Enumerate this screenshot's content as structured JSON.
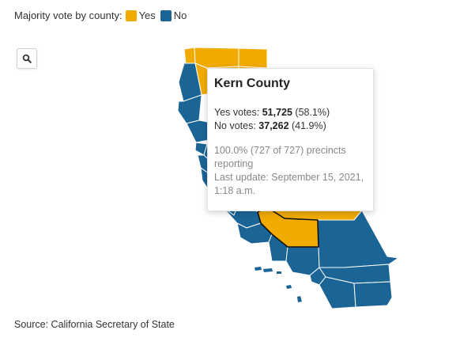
{
  "legend": {
    "title": "Majority vote by county:",
    "items": [
      {
        "label": "Yes",
        "color": "#f0aa00"
      },
      {
        "label": "No",
        "color": "#1a6496"
      }
    ]
  },
  "zoom_button": {
    "icon": "search-icon"
  },
  "colors": {
    "yes": "#f0aa00",
    "no": "#1a6496",
    "selected_outline": "#111111"
  },
  "tooltip": {
    "county": "Kern County",
    "yes_label": "Yes votes:",
    "yes_votes": "51,725",
    "yes_pct": "(58.1%)",
    "no_label": "No votes:",
    "no_votes": "37,262",
    "no_pct": "(41.9%)",
    "precincts": "100.0% (727 of 727) precincts reporting",
    "last_update": "Last update: September 15, 2021, 1:18 a.m."
  },
  "source": "Source: California Secretary of State"
}
